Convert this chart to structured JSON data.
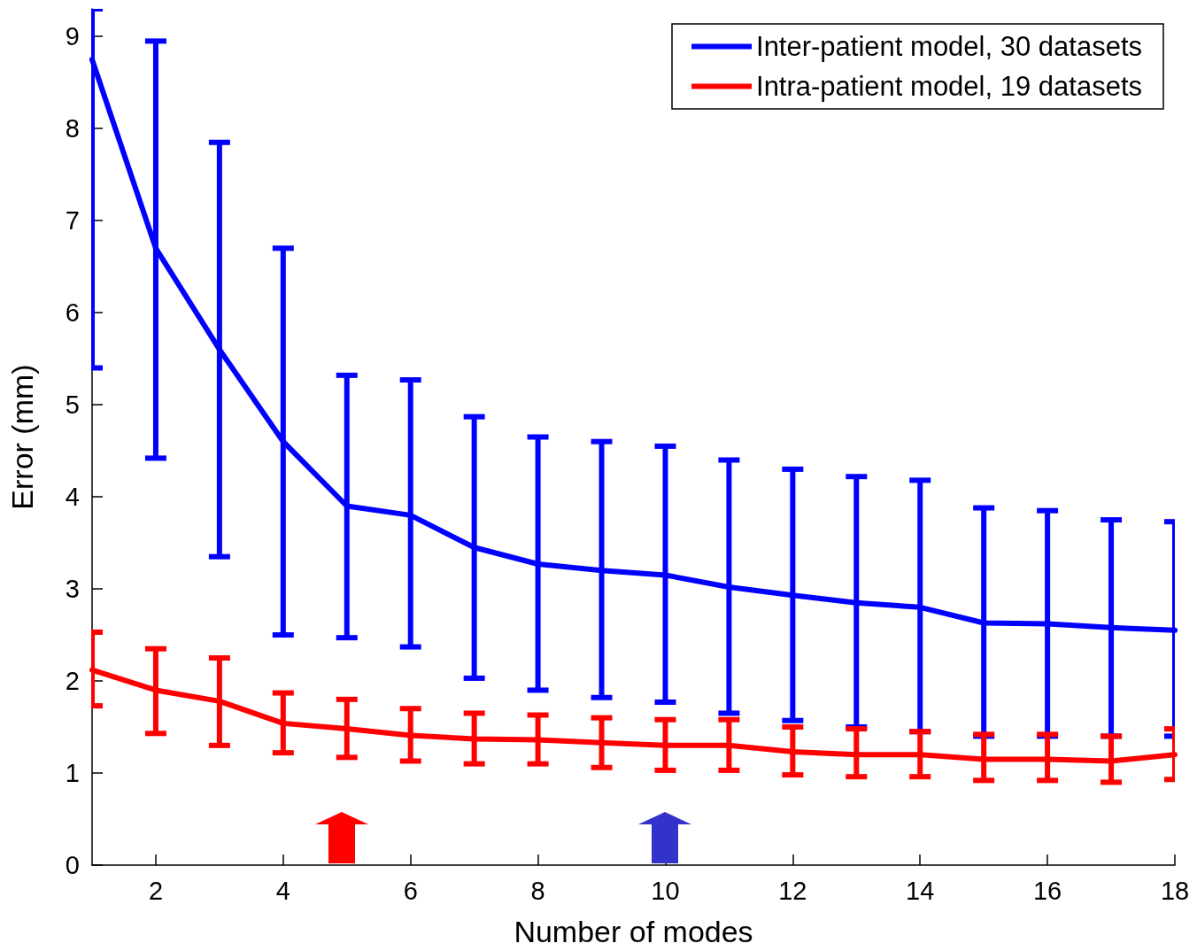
{
  "chart_data": {
    "type": "line",
    "xlabel": "Number of modes",
    "ylabel": "Error (mm)",
    "x": [
      1,
      2,
      3,
      4,
      5,
      6,
      7,
      8,
      9,
      10,
      11,
      12,
      13,
      14,
      15,
      16,
      17,
      18
    ],
    "series": [
      {
        "name": "Inter-patient model, 30 datasets",
        "color": "#0000ff",
        "values": [
          8.75,
          6.7,
          5.6,
          4.6,
          3.9,
          3.8,
          3.45,
          3.27,
          3.2,
          3.15,
          3.02,
          2.93,
          2.85,
          2.8,
          2.63,
          2.62,
          2.58,
          2.55
        ],
        "errors": [
          [
            5.4,
            9.3
          ],
          [
            4.42,
            8.95
          ],
          [
            3.35,
            7.85
          ],
          [
            2.5,
            6.7
          ],
          [
            2.47,
            5.32
          ],
          [
            2.37,
            5.27
          ],
          [
            2.03,
            4.87
          ],
          [
            1.9,
            4.65
          ],
          [
            1.82,
            4.6
          ],
          [
            1.77,
            4.55
          ],
          [
            1.65,
            4.4
          ],
          [
            1.57,
            4.3
          ],
          [
            1.5,
            4.22
          ],
          [
            1.45,
            4.18
          ],
          [
            1.4,
            3.88
          ],
          [
            1.4,
            3.85
          ],
          [
            1.4,
            3.75
          ],
          [
            1.4,
            3.73
          ]
        ]
      },
      {
        "name": "Intra-patient model, 19 datasets",
        "color": "#ff0000",
        "values": [
          2.12,
          1.9,
          1.78,
          1.54,
          1.48,
          1.41,
          1.37,
          1.36,
          1.33,
          1.3,
          1.3,
          1.23,
          1.2,
          1.2,
          1.15,
          1.15,
          1.13,
          1.2
        ],
        "errors": [
          [
            1.73,
            2.53
          ],
          [
            1.43,
            2.35
          ],
          [
            1.3,
            2.25
          ],
          [
            1.22,
            1.87
          ],
          [
            1.17,
            1.8
          ],
          [
            1.13,
            1.7
          ],
          [
            1.1,
            1.65
          ],
          [
            1.1,
            1.63
          ],
          [
            1.06,
            1.6
          ],
          [
            1.03,
            1.58
          ],
          [
            1.03,
            1.58
          ],
          [
            0.98,
            1.5
          ],
          [
            0.96,
            1.48
          ],
          [
            0.96,
            1.45
          ],
          [
            0.92,
            1.42
          ],
          [
            0.92,
            1.42
          ],
          [
            0.9,
            1.4
          ],
          [
            0.93,
            1.48
          ]
        ]
      }
    ],
    "xlim": [
      1,
      18
    ],
    "xticks": [
      2,
      4,
      6,
      8,
      10,
      12,
      14,
      16,
      18
    ],
    "ylim": [
      0,
      9.3
    ],
    "yticks": [
      0,
      1,
      2,
      3,
      4,
      5,
      6,
      7,
      8,
      9
    ],
    "grid": false,
    "legend": "top right",
    "marker": "none",
    "line_style": "solid"
  }
}
